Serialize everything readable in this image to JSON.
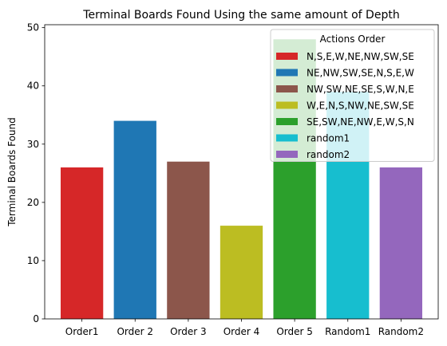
{
  "chart_data": {
    "type": "bar",
    "title": "Terminal Boards Found Using the same amount of Depth",
    "xlabel": "",
    "ylabel": "Terminal Boards Found",
    "ylim": [
      0,
      50.5
    ],
    "yticks": [
      0,
      10,
      20,
      30,
      40,
      50
    ],
    "categories": [
      "Order1",
      "Order 2",
      "Order 3",
      "Order 4",
      "Order 5",
      "Random1",
      "Random2"
    ],
    "values": [
      26,
      34,
      27,
      16,
      48,
      39,
      26
    ],
    "colors": [
      "#d62728",
      "#1f77b4",
      "#8c564b",
      "#bcbd22",
      "#2ca02c",
      "#17becf",
      "#9467bd"
    ],
    "grid": false,
    "legend": {
      "title": "Actions Order",
      "placement": "top-right",
      "entries": [
        {
          "label": "N,S,E,W,NE,NW,SW,SE",
          "color": "#d62728"
        },
        {
          "label": "NE,NW,SW,SE,N,S,E,W",
          "color": "#1f77b4"
        },
        {
          "label": "NW,SW,NE,SE,S,W,N,E",
          "color": "#8c564b"
        },
        {
          "label": "W,E,N,S,NW,NE,SW,SE",
          "color": "#bcbd22"
        },
        {
          "label": "SE,SW,NE,NW,E,W,S,N",
          "color": "#2ca02c"
        },
        {
          "label": "random1",
          "color": "#17becf"
        },
        {
          "label": "random2",
          "color": "#9467bd"
        }
      ]
    }
  }
}
